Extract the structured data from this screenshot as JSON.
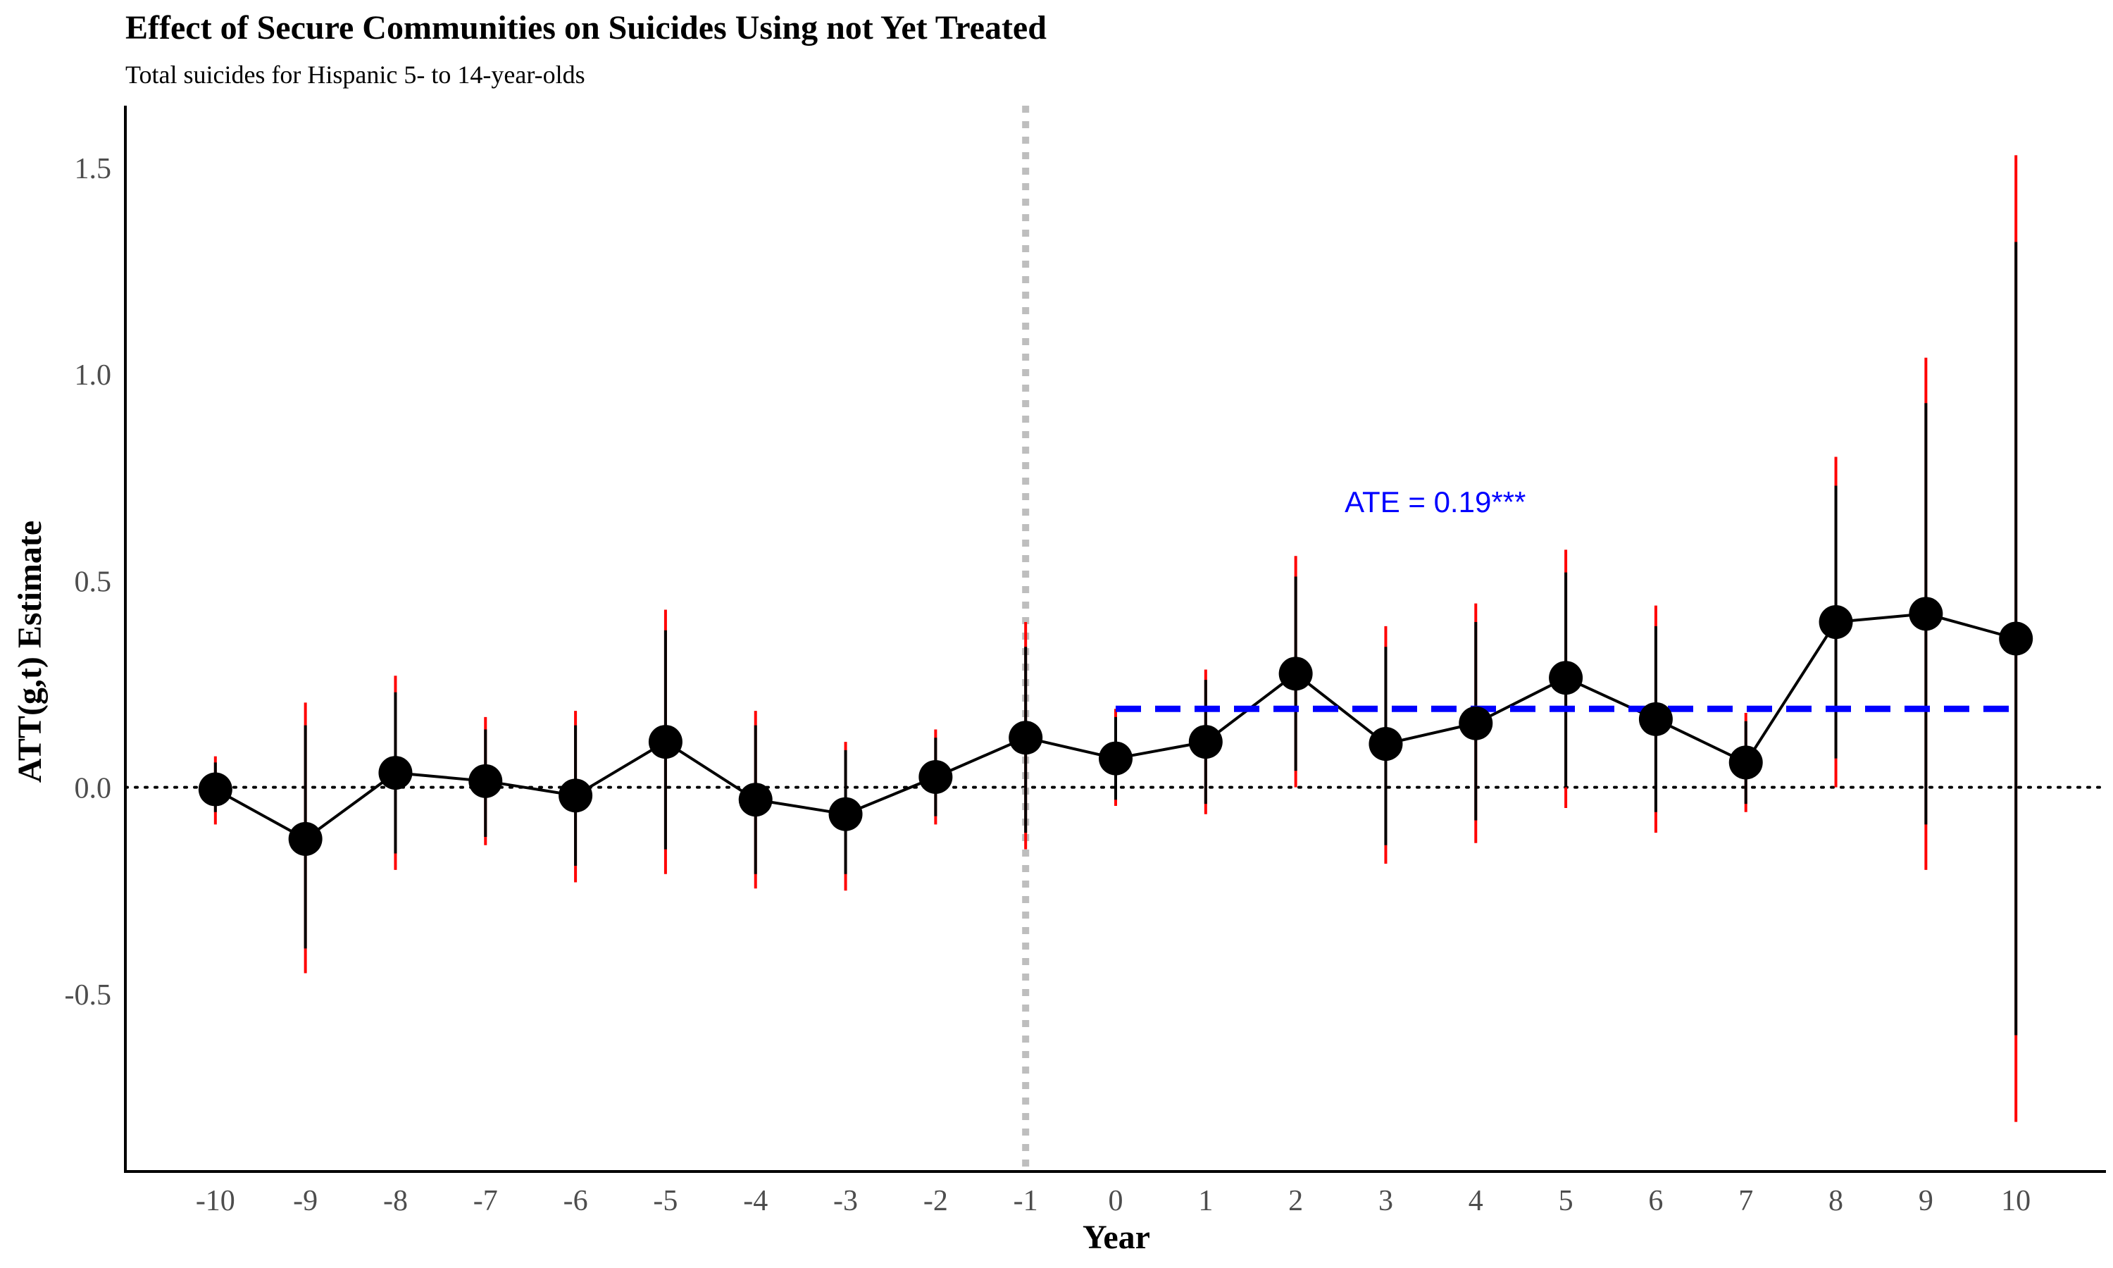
{
  "chart_data": {
    "type": "scatter",
    "title": "Effect of Secure Communities on Suicides Using not Yet Treated",
    "subtitle": "Total suicides for Hispanic 5- to 14-year-olds",
    "xlabel": "Year",
    "ylabel": "ATT(g,t) Estimate",
    "x": [
      -10,
      -9,
      -8,
      -7,
      -6,
      -5,
      -4,
      -3,
      -2,
      -1,
      0,
      1,
      2,
      3,
      4,
      5,
      6,
      7,
      8,
      9,
      10
    ],
    "series": [
      {
        "values": [
          -0.005,
          -0.125,
          0.035,
          0.015,
          -0.02,
          0.11,
          -0.03,
          -0.065,
          0.025,
          0.12,
          0.07,
          0.11,
          0.275,
          0.105,
          0.155,
          0.265,
          0.165,
          0.06,
          0.4,
          0.42,
          0.36
        ],
        "ci_pointwise_lower": [
          -0.06,
          -0.39,
          -0.16,
          -0.12,
          -0.19,
          -0.15,
          -0.21,
          -0.21,
          -0.07,
          -0.11,
          -0.03,
          -0.04,
          0.04,
          -0.14,
          -0.08,
          0.0,
          -0.06,
          -0.04,
          0.07,
          -0.09,
          -0.6
        ],
        "ci_pointwise_upper": [
          0.06,
          0.15,
          0.23,
          0.14,
          0.15,
          0.38,
          0.15,
          0.09,
          0.12,
          0.34,
          0.17,
          0.26,
          0.51,
          0.34,
          0.4,
          0.52,
          0.39,
          0.16,
          0.73,
          0.93,
          1.32
        ],
        "ci_uniform_lower": [
          -0.09,
          -0.45,
          -0.2,
          -0.14,
          -0.23,
          -0.21,
          -0.245,
          -0.25,
          -0.09,
          -0.15,
          -0.045,
          -0.065,
          0.0,
          -0.185,
          -0.135,
          -0.05,
          -0.11,
          -0.06,
          0.0,
          -0.2,
          -0.81
        ],
        "ci_uniform_upper": [
          0.075,
          0.205,
          0.27,
          0.17,
          0.185,
          0.43,
          0.185,
          0.11,
          0.14,
          0.4,
          0.19,
          0.285,
          0.56,
          0.39,
          0.445,
          0.575,
          0.44,
          0.18,
          0.8,
          1.04,
          1.53
        ]
      }
    ],
    "ate": {
      "value": 0.19,
      "label": "ATE = 0.19***",
      "x_start": 0,
      "x_end": 10,
      "annotation_x": 3.55,
      "annotation_y": 0.69
    },
    "reference_vline_x": -1,
    "reference_hline_y": 0,
    "x_ticks": [
      "-10",
      "-9",
      "-8",
      "-7",
      "-6",
      "-5",
      "-4",
      "-3",
      "-2",
      "-1",
      "0",
      "1",
      "2",
      "3",
      "4",
      "5",
      "6",
      "7",
      "8",
      "9",
      "10"
    ],
    "y_ticks": [
      "1.5",
      "1.0",
      "0.5",
      "0.0",
      "-0.5"
    ],
    "y_tick_values": [
      1.5,
      1.0,
      0.5,
      0.0,
      -0.5
    ],
    "xlim": [
      -11,
      11
    ],
    "ylim": [
      -0.93,
      1.65
    ],
    "colors": {
      "point": "#000000",
      "line": "#000000",
      "ci_pointwise": "#000000",
      "ci_uniform": "#ff0000",
      "ate_line": "#0000ff",
      "vline": "#bebebe",
      "hline": "#000000"
    },
    "grid": false
  }
}
